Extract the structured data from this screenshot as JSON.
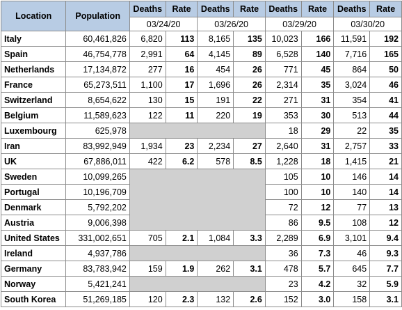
{
  "table": {
    "header": {
      "columns": [
        "Location",
        "Population",
        "Deaths",
        "Rate",
        "Deaths",
        "Rate",
        "Deaths",
        "Rate",
        "Deaths",
        "Rate"
      ],
      "dates": [
        "03/24/20",
        "03/26/20",
        "03/29/20",
        "03/30/20"
      ]
    },
    "rows": [
      {
        "location": "Italy",
        "population": "60,461,826",
        "periods": [
          [
            "6,820",
            "113"
          ],
          [
            "8,165",
            "135"
          ],
          [
            "10,023",
            "166"
          ],
          [
            "11,591",
            "192"
          ]
        ]
      },
      {
        "location": "Spain",
        "population": "46,754,778",
        "periods": [
          [
            "2,991",
            "64"
          ],
          [
            "4,145",
            "89"
          ],
          [
            "6,528",
            "140"
          ],
          [
            "7,716",
            "165"
          ]
        ]
      },
      {
        "location": "Netherlands",
        "population": "17,134,872",
        "periods": [
          [
            "277",
            "16"
          ],
          [
            "454",
            "26"
          ],
          [
            "771",
            "45"
          ],
          [
            "864",
            "50"
          ]
        ]
      },
      {
        "location": "France",
        "population": "65,273,511",
        "periods": [
          [
            "1,100",
            "17"
          ],
          [
            "1,696",
            "26"
          ],
          [
            "2,314",
            "35"
          ],
          [
            "3,024",
            "46"
          ]
        ]
      },
      {
        "location": "Switzerland",
        "population": "8,654,622",
        "periods": [
          [
            "130",
            "15"
          ],
          [
            "191",
            "22"
          ],
          [
            "271",
            "31"
          ],
          [
            "354",
            "41"
          ]
        ]
      },
      {
        "location": "Belgium",
        "population": "11,589,623",
        "periods": [
          [
            "122",
            "11"
          ],
          [
            "220",
            "19"
          ],
          [
            "353",
            "30"
          ],
          [
            "513",
            "44"
          ]
        ]
      },
      {
        "location": "Luxembourg",
        "population": "625,978",
        "periods": [
          null,
          null,
          [
            "18",
            "29"
          ],
          [
            "22",
            "35"
          ]
        ]
      },
      {
        "location": "Iran",
        "population": "83,992,949",
        "periods": [
          [
            "1,934",
            "23"
          ],
          [
            "2,234",
            "27"
          ],
          [
            "2,640",
            "31"
          ],
          [
            "2,757",
            "33"
          ]
        ]
      },
      {
        "location": "UK",
        "population": "67,886,011",
        "periods": [
          [
            "422",
            "6.2"
          ],
          [
            "578",
            "8.5"
          ],
          [
            "1,228",
            "18"
          ],
          [
            "1,415",
            "21"
          ]
        ]
      },
      {
        "location": "Sweden",
        "population": "10,099,265",
        "periods": [
          null,
          null,
          [
            "105",
            "10"
          ],
          [
            "146",
            "14"
          ]
        ]
      },
      {
        "location": "Portugal",
        "population": "10,196,709",
        "periods": [
          null,
          null,
          [
            "100",
            "10"
          ],
          [
            "140",
            "14"
          ]
        ]
      },
      {
        "location": "Denmark",
        "population": "5,792,202",
        "periods": [
          null,
          null,
          [
            "72",
            "12"
          ],
          [
            "77",
            "13"
          ]
        ]
      },
      {
        "location": "Austria",
        "population": "9,006,398",
        "periods": [
          null,
          null,
          [
            "86",
            "9.5"
          ],
          [
            "108",
            "12"
          ]
        ]
      },
      {
        "location": "United States",
        "population": "331,002,651",
        "periods": [
          [
            "705",
            "2.1"
          ],
          [
            "1,084",
            "3.3"
          ],
          [
            "2,289",
            "6.9"
          ],
          [
            "3,101",
            "9.4"
          ]
        ]
      },
      {
        "location": "Ireland",
        "population": "4,937,786",
        "periods": [
          null,
          null,
          [
            "36",
            "7.3"
          ],
          [
            "46",
            "9.3"
          ]
        ]
      },
      {
        "location": "Germany",
        "population": "83,783,942",
        "periods": [
          [
            "159",
            "1.9"
          ],
          [
            "262",
            "3.1"
          ],
          [
            "478",
            "5.7"
          ],
          [
            "645",
            "7.7"
          ]
        ]
      },
      {
        "location": "Norway",
        "population": "5,421,241",
        "periods": [
          null,
          null,
          [
            "23",
            "4.2"
          ],
          [
            "32",
            "5.9"
          ]
        ]
      },
      {
        "location": "South Korea",
        "population": "51,269,185",
        "periods": [
          [
            "120",
            "2.3"
          ],
          [
            "132",
            "2.6"
          ],
          [
            "152",
            "3.0"
          ],
          [
            "158",
            "3.1"
          ]
        ]
      }
    ]
  }
}
